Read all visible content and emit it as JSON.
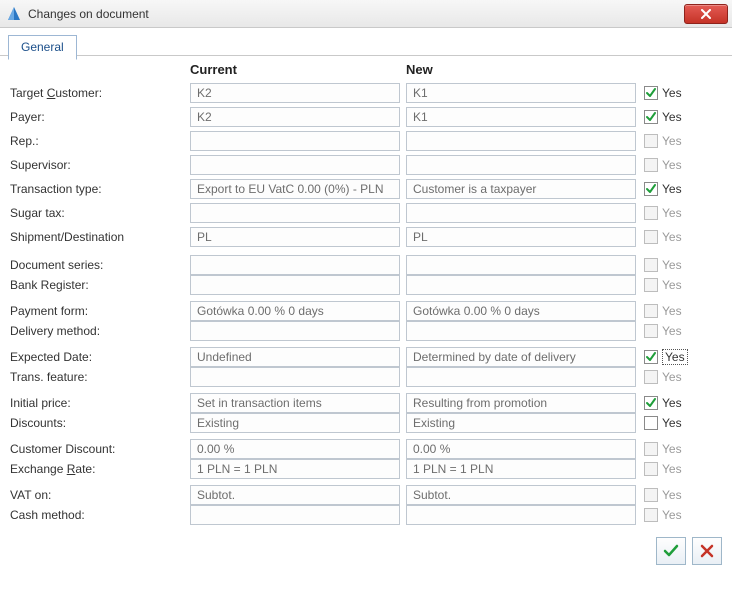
{
  "window": {
    "title": "Changes on document"
  },
  "tabs": {
    "general": "General"
  },
  "headers": {
    "current": "Current",
    "new": "New"
  },
  "labels": {
    "target_customer_pre": "Target ",
    "target_customer_u": "C",
    "target_customer_post": "ustomer:",
    "payer": "Payer:",
    "rep": "Rep.:",
    "supervisor": "Supervisor:",
    "transaction_type": "Transaction type:",
    "sugar_tax": "Sugar tax:",
    "shipment_dest": "Shipment/Destination",
    "document_series": "Document series:",
    "bank_register": "Bank Register:",
    "payment_form": "Payment form:",
    "delivery_method": "Delivery method:",
    "expected_date": "Expected Date:",
    "trans_feature": "Trans. feature:",
    "initial_price": "Initial price:",
    "discounts": "Discounts:",
    "customer_discount": "Customer Discount:",
    "exchange_rate_pre": "Exchange ",
    "exchange_rate_u": "R",
    "exchange_rate_post": "ate:",
    "vat_on": "VAT on:",
    "cash_method": "Cash method:"
  },
  "chk_label": "Yes",
  "rows": {
    "target_customer": {
      "current": "K2",
      "new": "K1",
      "checked": true,
      "enabled": true
    },
    "payer": {
      "current": "K2",
      "new": "K1",
      "checked": true,
      "enabled": true
    },
    "rep": {
      "current": "",
      "new": "",
      "checked": false,
      "enabled": false
    },
    "supervisor": {
      "current": "",
      "new": "",
      "checked": false,
      "enabled": false
    },
    "transaction_type": {
      "current": "Export to EU VatC 0.00  (0%) - PLN",
      "new": "Customer is a taxpayer",
      "checked": true,
      "enabled": true
    },
    "sugar_tax": {
      "current": "",
      "new": "",
      "checked": false,
      "enabled": false
    },
    "shipment_dest": {
      "current": "PL",
      "new": "PL",
      "checked": false,
      "enabled": false
    },
    "document_series": {
      "current": "",
      "new": "",
      "checked": false,
      "enabled": false
    },
    "bank_register": {
      "current": "",
      "new": "",
      "checked": false,
      "enabled": false
    },
    "payment_form": {
      "current": "Gotówka    0.00 % 0 days",
      "new": "Gotówka    0.00 % 0 days",
      "checked": false,
      "enabled": false
    },
    "delivery_method": {
      "current": "",
      "new": "",
      "checked": false,
      "enabled": false
    },
    "expected_date": {
      "current": "Undefined",
      "new": "Determined by date of delivery",
      "checked": true,
      "enabled": true,
      "focused": true
    },
    "trans_feature": {
      "current": "",
      "new": "",
      "checked": false,
      "enabled": false
    },
    "initial_price": {
      "current": "Set in transaction items",
      "new": "Resulting from promotion",
      "checked": true,
      "enabled": true
    },
    "discounts": {
      "current": "Existing",
      "new": "Existing",
      "checked": false,
      "enabled": true
    },
    "customer_discount": {
      "current": "   0.00 %",
      "new": "   0.00 %",
      "checked": false,
      "enabled": false
    },
    "exchange_rate": {
      "current": "1 PLN = 1 PLN",
      "new": "1 PLN = 1 PLN",
      "checked": false,
      "enabled": false
    },
    "vat_on": {
      "current": "Subtot.",
      "new": "Subtot.",
      "checked": false,
      "enabled": false
    },
    "cash_method": {
      "current": "",
      "new": "",
      "checked": false,
      "enabled": false
    }
  },
  "colors": {
    "accent": "#1b4f8a",
    "check_green": "#1f9e3a",
    "cancel_red": "#c53327",
    "field_border": "#bfc7d0",
    "field_text": "#6d6d6d"
  }
}
